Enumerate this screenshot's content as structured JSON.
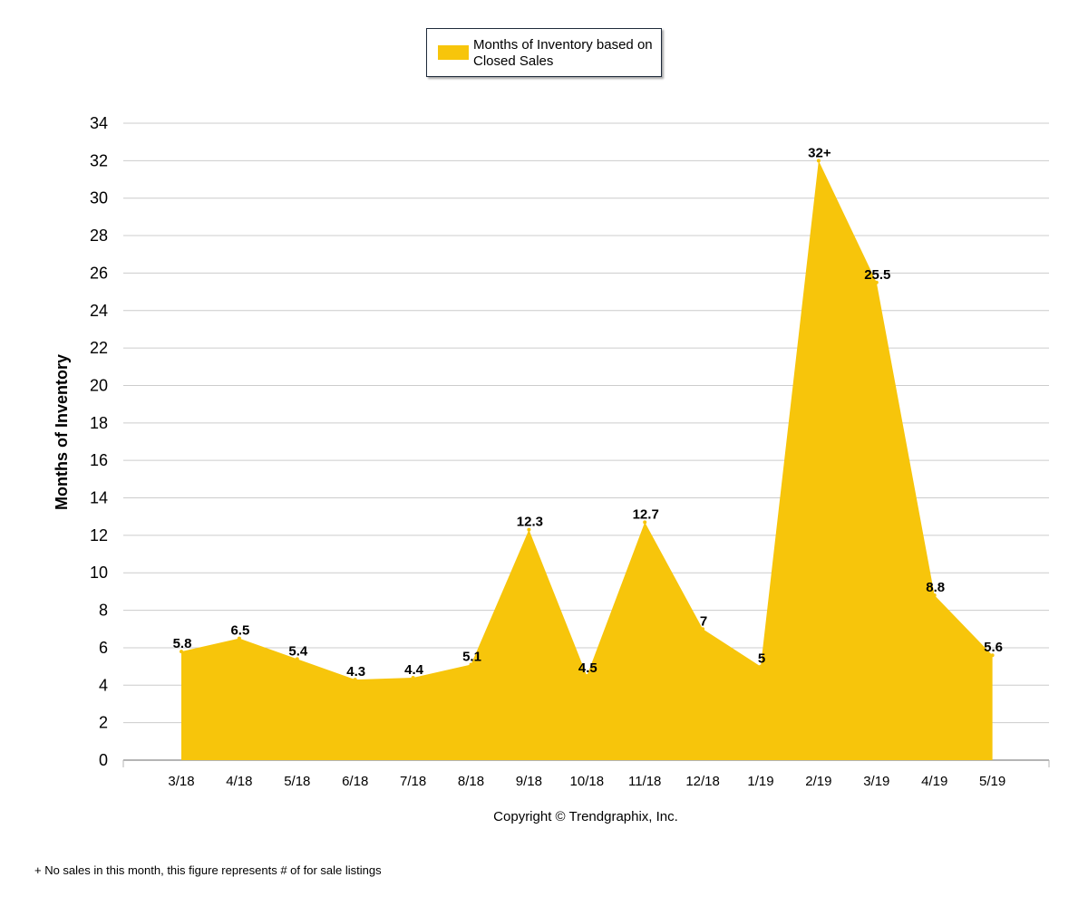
{
  "chart_data": {
    "type": "area",
    "categories": [
      "3/18",
      "4/18",
      "5/18",
      "6/18",
      "7/18",
      "8/18",
      "9/18",
      "10/18",
      "11/18",
      "12/18",
      "1/19",
      "2/19",
      "3/19",
      "4/19",
      "5/19"
    ],
    "series": [
      {
        "name": "Months of Inventory based on Closed Sales",
        "values": [
          5.8,
          6.5,
          5.4,
          4.3,
          4.4,
          5.1,
          12.3,
          4.5,
          12.7,
          7,
          5,
          32,
          25.5,
          8.8,
          5.6
        ],
        "labels": [
          "5.8",
          "6.5",
          "5.4",
          "4.3",
          "4.4",
          "5.1",
          "12.3",
          "4.5",
          "12.7",
          "7",
          "5",
          "32+",
          "25.5",
          "8.8",
          "5.6"
        ],
        "color": "#F7C50B"
      }
    ],
    "ylabel": "Months of Inventory",
    "xlabel": "",
    "ylim": [
      0,
      34
    ],
    "yticks": [
      0,
      2,
      4,
      6,
      8,
      10,
      12,
      14,
      16,
      18,
      20,
      22,
      24,
      26,
      28,
      30,
      32,
      34
    ],
    "grid": true,
    "legend_position": "top-center"
  },
  "copyright": "Copyright © Trendgraphix, Inc.",
  "footnote": "+ No sales in this month, this figure represents # of for sale listings"
}
